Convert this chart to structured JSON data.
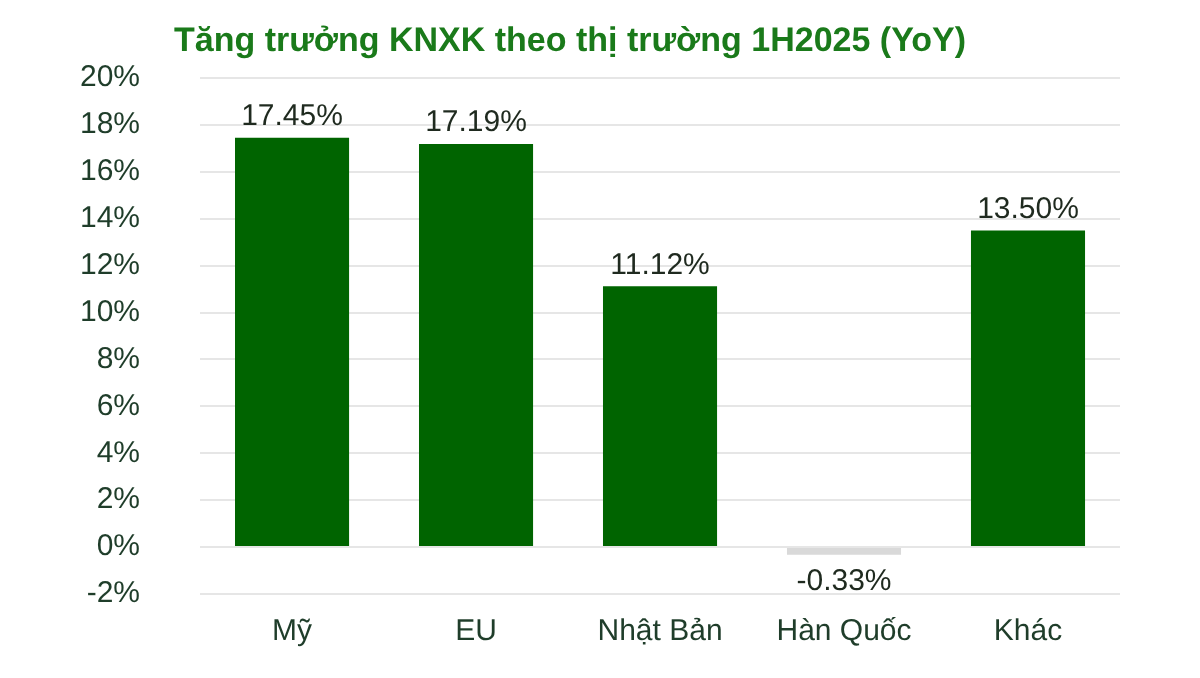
{
  "chart_data": {
    "type": "bar",
    "title": "Tăng trưởng KNXK theo thị trường 1H2025 (YoY)",
    "categories": [
      "Mỹ",
      "EU",
      "Nhật Bản",
      "Hàn Quốc",
      "Khác"
    ],
    "values": [
      17.45,
      17.19,
      11.12,
      -0.33,
      13.5
    ],
    "colors": [
      "#006400",
      "#006400",
      "#006400",
      "#d9d9d9",
      "#006400"
    ],
    "value_labels": [
      "17.45%",
      "17.19%",
      "11.12%",
      "-0.33%",
      "13.50%"
    ],
    "ylim": [
      -2,
      20
    ],
    "yticks": [
      {
        "value": -2,
        "label": "-2%"
      },
      {
        "value": 0,
        "label": "0%"
      },
      {
        "value": 2,
        "label": "2%"
      },
      {
        "value": 4,
        "label": "4%"
      },
      {
        "value": 6,
        "label": "6%"
      },
      {
        "value": 8,
        "label": "8%"
      },
      {
        "value": 10,
        "label": "10%"
      },
      {
        "value": 12,
        "label": "12%"
      },
      {
        "value": 14,
        "label": "14%"
      },
      {
        "value": 16,
        "label": "16%"
      },
      {
        "value": 18,
        "label": "18%"
      },
      {
        "value": 20,
        "label": "20%"
      }
    ],
    "grid": "y"
  }
}
